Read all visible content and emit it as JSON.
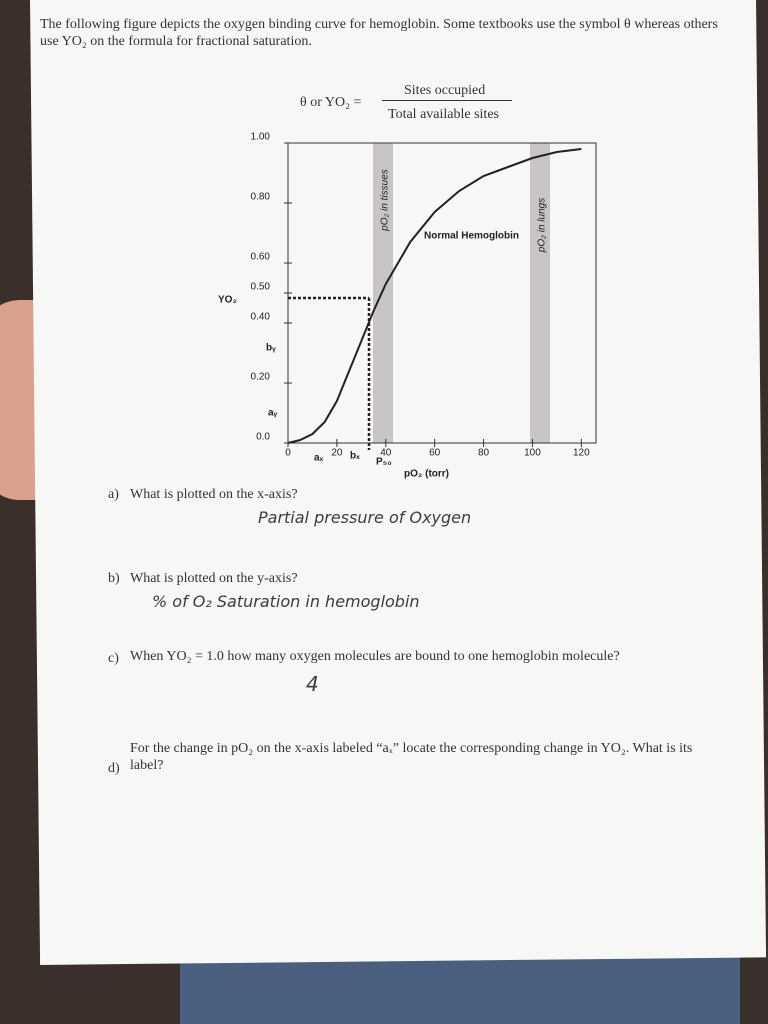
{
  "header": {
    "text": "The following figure depicts the oxygen binding curve for hemoglobin. Some textbooks use the symbol θ whereas others use YO₂ on the formula for fractional saturation."
  },
  "formula": {
    "lhs": "θ or YO₂ =",
    "numerator": "Sites occupied",
    "denominator": "Total available sites"
  },
  "chart_data": {
    "type": "line",
    "x_label": "pO₂ (torr)",
    "y_label": "YO₂",
    "x": [
      0,
      5,
      10,
      15,
      20,
      25,
      30,
      35,
      40,
      50,
      60,
      70,
      80,
      90,
      100,
      110,
      120
    ],
    "series": [
      {
        "name": "Normal Hemoglobin",
        "color": "#222222",
        "values": [
          0,
          0.01,
          0.03,
          0.07,
          0.14,
          0.24,
          0.34,
          0.44,
          0.53,
          0.67,
          0.77,
          0.84,
          0.89,
          0.92,
          0.95,
          0.97,
          0.98
        ]
      }
    ],
    "xlim": [
      0,
      126
    ],
    "ylim": [
      0,
      1
    ],
    "xticks": [
      0,
      20,
      40,
      60,
      80,
      100,
      120
    ],
    "yticks": [
      {
        "value": 0,
        "label": "0.0"
      },
      {
        "value": 0.2,
        "label": "0.20"
      },
      {
        "value": 0.4,
        "label": "0.40"
      },
      {
        "value": 0.5,
        "label": "0.50"
      },
      {
        "value": 0.6,
        "label": "0.60"
      },
      {
        "value": 0.8,
        "label": "0.80"
      },
      {
        "value": 1,
        "label": "1.00"
      }
    ],
    "annotations": {
      "tissues": "pO₂ in tissues",
      "lungs": "pO₂ in lungs",
      "p50": "P₅₀",
      "ax": "aₓ",
      "bx": "bₓ",
      "ay": "aᵧ",
      "by": "bᵧ"
    }
  },
  "questions": [
    {
      "label": "a)",
      "text": "What is plotted on the x-axis?",
      "answer": "Partial pressure of Oxygen"
    },
    {
      "label": "b)",
      "text": "What is plotted on the y-axis?",
      "answer": "% of O₂ Saturation in hemoglobin"
    },
    {
      "label": "c)",
      "text": "When YO₂ = 1.0 how many oxygen molecules are bound to one hemoglobin molecule?",
      "answer": "4"
    },
    {
      "label": "d)",
      "text": "For the change in pO₂ on the x-axis labeled “aₓ” locate the corresponding change in YO₂. What is its label?"
    }
  ]
}
